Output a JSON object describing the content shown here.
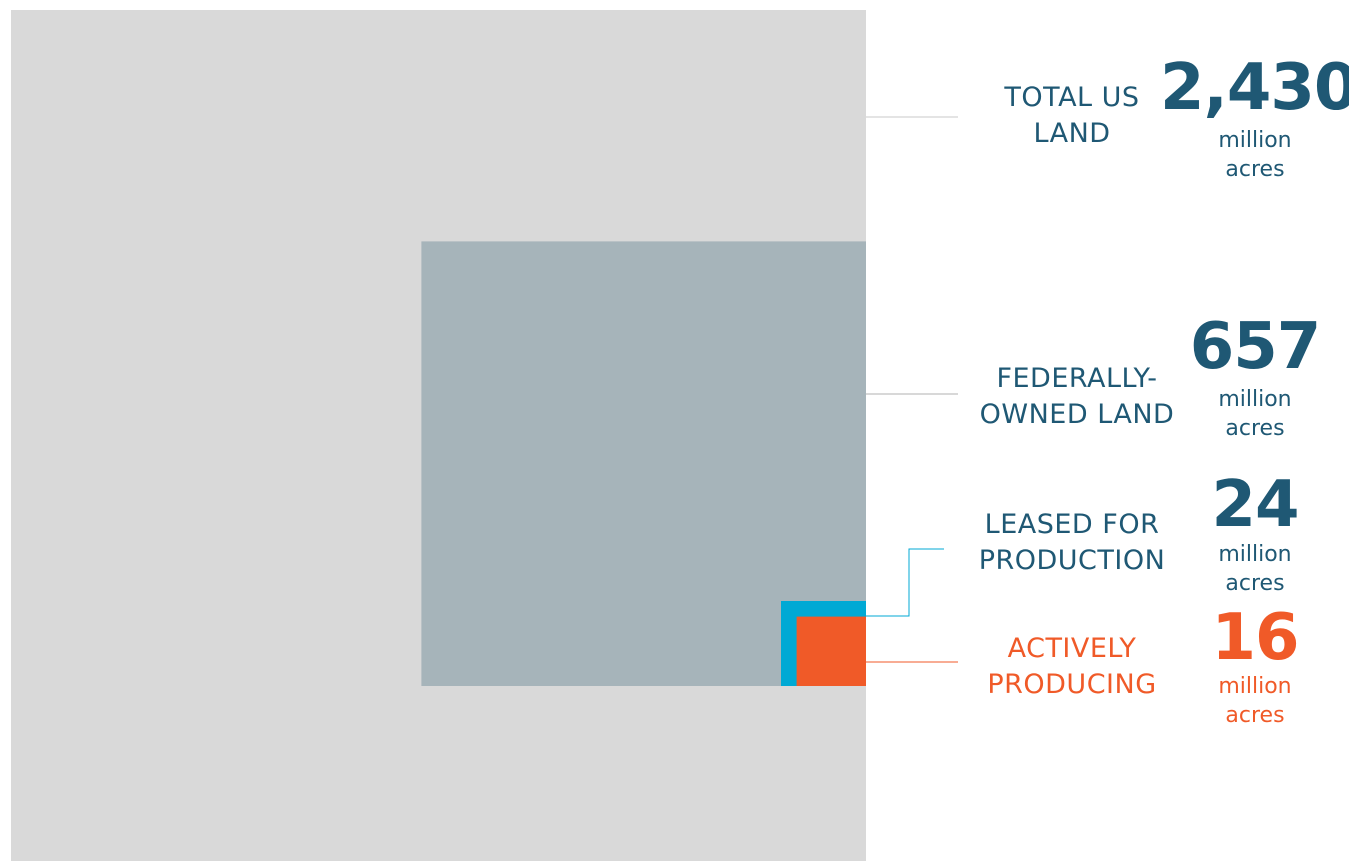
{
  "chart_data": {
    "type": "nested-area",
    "unit": "million acres",
    "items": [
      {
        "key": "total",
        "label_lines": [
          "TOTAL US",
          "LAND"
        ],
        "value": 2430,
        "value_text": "2,430",
        "unit_lines": [
          "million",
          "acres"
        ],
        "color": "#d9d9d9",
        "text_color": "#1f5874"
      },
      {
        "key": "federal",
        "label_lines": [
          "FEDERALLY-",
          "OWNED LAND"
        ],
        "value": 657,
        "value_text": "657",
        "unit_lines": [
          "million",
          "acres"
        ],
        "color": "#a6b4ba",
        "text_color": "#1f5874"
      },
      {
        "key": "leased",
        "label_lines": [
          "LEASED FOR",
          "PRODUCTION"
        ],
        "value": 24,
        "value_text": "24",
        "unit_lines": [
          "million",
          "acres"
        ],
        "color": "#00a9d4",
        "text_color": "#1f5874"
      },
      {
        "key": "producing",
        "label_lines": [
          "ACTIVELY",
          "PRODUCING"
        ],
        "value": 16,
        "value_text": "16",
        "unit_lines": [
          "million",
          "acres"
        ],
        "color": "#f05a28",
        "text_color": "#f05a28"
      }
    ]
  }
}
